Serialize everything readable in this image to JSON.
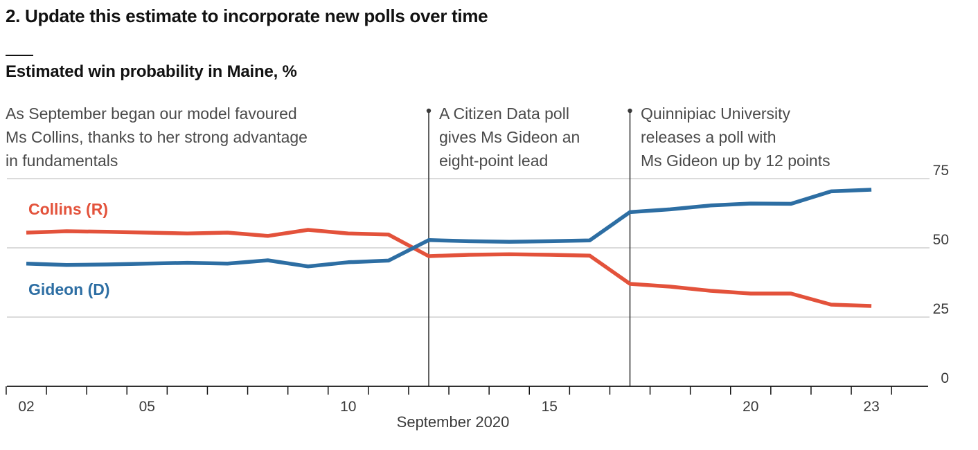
{
  "header": {
    "title": "2. Update this estimate to incorporate new polls over time",
    "subtitle": "Estimated win probability in Maine, %"
  },
  "annotations": {
    "intro": "As September began our model favoured\nMs Collins, thanks to her strong advantage\nin fundamentals",
    "citizen_data": "A Citizen Data poll\ngives Ms Gideon an\neight-point lead",
    "quinnipiac": "Quinnipiac University\nreleases a poll with\nMs Gideon up by 12 points"
  },
  "chart_data": {
    "type": "line",
    "title": "Estimated win probability in Maine, %",
    "xlabel": "September 2020",
    "ylabel": "",
    "x": [
      2,
      3,
      4,
      5,
      6,
      7,
      8,
      9,
      10,
      11,
      12,
      13,
      14,
      15,
      16,
      17,
      18,
      19,
      20,
      21,
      22,
      23
    ],
    "x_ticks": [
      2,
      3,
      4,
      5,
      6,
      7,
      8,
      9,
      10,
      11,
      12,
      13,
      14,
      15,
      16,
      17,
      18,
      19,
      20,
      21,
      22,
      23,
      24
    ],
    "x_tick_labels": [
      {
        "day": 2,
        "label": "02"
      },
      {
        "day": 5,
        "label": "05"
      },
      {
        "day": 10,
        "label": "10"
      },
      {
        "day": 15,
        "label": "15"
      },
      {
        "day": 20,
        "label": "20"
      },
      {
        "day": 23,
        "label": "23"
      }
    ],
    "xlim": [
      1.5,
      24.5
    ],
    "ylim": [
      0,
      75
    ],
    "y_ticks": [
      0,
      25,
      50,
      75
    ],
    "y_tick_labels": [
      "0",
      "25",
      "50",
      "75"
    ],
    "grid": true,
    "series": [
      {
        "name": "Collins (R)",
        "color": "#e3523b",
        "values": [
          55.5,
          56,
          55.8,
          55.5,
          55.2,
          55.5,
          54.3,
          56.5,
          55.2,
          54.8,
          47,
          47.5,
          47.7,
          47.5,
          47.2,
          37,
          36,
          34.5,
          33.5,
          33.5,
          29.5,
          29
        ]
      },
      {
        "name": "Gideon (D)",
        "color": "#2d6ea3",
        "values": [
          44.3,
          43.8,
          44,
          44.3,
          44.6,
          44.3,
          45.5,
          43.3,
          44.8,
          45.4,
          52.8,
          52.4,
          52.2,
          52.4,
          52.7,
          62.9,
          63.9,
          65.3,
          66,
          65.9,
          70.4,
          71
        ]
      }
    ],
    "series_labels": [
      {
        "text": "Collins (R)",
        "color": "#e3523b",
        "day": 1.6,
        "value": 64
      },
      {
        "text": "Gideon (D)",
        "color": "#2d6ea3",
        "day": 1.6,
        "value": 35
      }
    ],
    "events": [
      {
        "day": 12,
        "label": "A Citizen Data poll\ngives Ms Gideon an\neight-point lead"
      },
      {
        "day": 17,
        "label": "Quinnipiac University\nreleases a poll with\nMs Gideon up by 12 points"
      }
    ]
  }
}
